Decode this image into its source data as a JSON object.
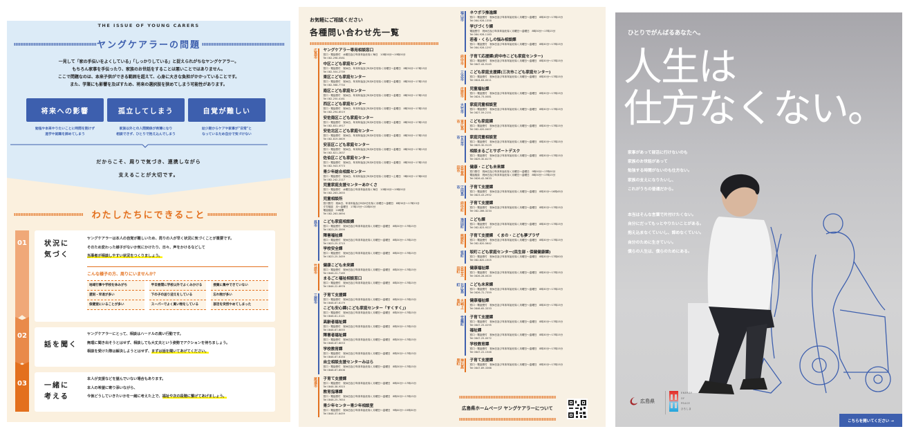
{
  "left": {
    "arc_label": "THE ISSUE OF YOUNG CARERS",
    "title": "ヤングケアラーの問題",
    "intro": [
      "一見して「家の手伝いをよくしている」「しっかりしている」と捉えられがちなヤングケアラー。",
      "もちろん家事を手伝ったり、家族のお世話をすることは悪いことではありません。",
      "ここで問題なのは、本来子供ができる範囲を超えて、心身に大きな負担がかかっていることです。",
      "また、学業にも影響を及ぼすため、将来の選択肢を狭めてしまう可能性があります。"
    ],
    "issues": [
      {
        "label": "将来への影響",
        "caption": [
          "勉強や本来やりたいことに時間を割けず",
          "進学や就職を諦めてしまう"
        ]
      },
      {
        "label": "孤立してしまう",
        "caption": [
          "家族以外との人間関係が希薄になり",
          "相談できず、ひとりで抱え込んでしまう"
        ]
      },
      {
        "label": "自覚が難しい",
        "caption": [
          "幼少期からケアや家事が\"日常\"と",
          "なっているため自分で気づけない"
        ]
      }
    ],
    "message": [
      "だからこそ、周りで気づき、連携しながら",
      "支えることが大切です。"
    ],
    "section2_title": "わたしたちにできること",
    "steps": [
      {
        "num": "01",
        "title": [
          "状況に",
          "気づく"
        ],
        "lines": [
          "ヤングケアラーは本人の自覚が難しいため、周りの人が早く状況に気づくことが重要です。",
          "そのため変わった様子がないか気にかけたり、日々、声をかけるなどして"
        ],
        "highlight": "当事者が相談しやすい状況をつくりましょう。",
        "signs_title": "こんな様子の方、周りにいませんか？",
        "signs": [
          "地域行事や学校を休みがち",
          "平日昼間に学校以外でよくみかける",
          "授業に集中できていない",
          "遅刻・早退が多い",
          "下の子の送り迎えをしている",
          "忘れ物が多い",
          "保健室にいることが多い",
          "スーパーでよく買い物をしている",
          "部活を突然やめてしまった"
        ]
      },
      {
        "num": "02",
        "title": [
          "話を聞く"
        ],
        "lines": [
          "ヤングケアラーにとって、相談はハードルの高い行動です。",
          "無理に聞き出そうとはせず、相談しても大丈夫という姿勢でアクションを待ちましょう。"
        ],
        "lead": "相談を受けた際は解決しようとはせず、",
        "highlight": "まずは話を聞いてあげてください。"
      },
      {
        "num": "03",
        "title": [
          "一緒に",
          "考える"
        ],
        "lines": [
          "本人が支援などを望んでいない場合もあります。",
          "本人の希望に寄り添いながら、"
        ],
        "lead": "今後どうしていきたいかを一緒に考えた上で、",
        "highlight": "福祉や次の段階に繋げてあげましょう。"
      }
    ],
    "colors": {
      "blue": "#3d5fae",
      "orange": "#e3701e",
      "blue_bg": "#dcebf7",
      "cream_bg": "#fbf0de",
      "highlight": "#fff200"
    }
  },
  "middle": {
    "kicker": "お気軽にご相談ください",
    "title": "各種問い合わせ先一覧",
    "columns": [
      [
        {
          "region": "広島市",
          "color": "orange",
          "entries": [
            {
              "name": "ヤングケアラー専用相談窓口",
              "lines": [
                "窓口・電話受付　水曜日及び年末年始を除く毎日　10時00分〜19時00分",
                "Tel 082-298-0581"
              ]
            },
            {
              "name": "中区こども家庭センター",
              "lines": [
                "窓口・電話受付　祝休日、年末年始及び8月6日を除く月曜日〜金曜日　8時30分〜17時15分",
                "Tel 082-504-2739"
              ]
            },
            {
              "name": "東区こども家庭センター",
              "lines": [
                "窓口・電話受付　祝休日、年末年始及び8月6日を除く月曜日〜金曜日　8時30分〜17時15分",
                "Tel 082-568-7734"
              ]
            },
            {
              "name": "南区こども家庭センター",
              "lines": [
                "窓口・電話受付　祝休日、年末年始及び8月6日を除く月曜日〜金曜日　8時30分〜17時15分",
                "Tel 082-250-4161"
              ]
            },
            {
              "name": "西区こども家庭センター",
              "lines": [
                "窓口・電話受付　祝休日、年末年始及び8月6日を除く月曜日〜金曜日　8時30分〜17時15分",
                "Tel 082-294-6519"
              ]
            },
            {
              "name": "安佐南区こども家庭センター",
              "lines": [
                "窓口・電話受付　祝休日、年末年始及び8月6日を除く月曜日〜金曜日　8時30分〜17時15分",
                "Tel 082-831-4917"
              ]
            },
            {
              "name": "安佐北区こども家庭センター",
              "lines": [
                "窓口・電話受付　祝休日、年末年始及び8月6日を除く月曜日〜金曜日　8時30分〜17時15分",
                "Tel 082-819-0609"
              ]
            },
            {
              "name": "安芸区こども家庭センター",
              "lines": [
                "窓口・電話受付　祝休日、年末年始及び8月6日を除く月曜日〜金曜日　8時30分〜17時15分",
                "Tel 082-821-2837"
              ]
            },
            {
              "name": "佐伯区こども家庭センター",
              "lines": [
                "窓口・電話受付　祝休日、年末年始及び8月6日を除く月曜日〜金曜日　8時30分〜17時15分",
                "Tel 082-943-9773"
              ]
            },
            {
              "name": "青少年総合相談センター",
              "lines": [
                "窓口・電話受付　祝休日、年末年始及び8月6日を除く月曜日〜土曜日　9時00分〜17時00分",
                "Tel 082-242-2117"
              ]
            },
            {
              "name": "児童家庭支援センターあかくさ",
              "lines": [
                "窓口・電話受付　水曜日及び年末年始を除く毎日　10時00分〜19時00分",
                "Tel 082-263-2655"
              ]
            },
            {
              "name": "児童相談所",
              "lines": [
                "窓口受付　祝休日、年末年始及び8月6日を除く月曜日〜金曜日　8時30分〜17時15分",
                "夕方相談　月〜金曜日　17時15分〜22時00分",
                "電話相談　24時間",
                "Tel 082-263-0694"
              ]
            }
          ]
        },
        {
          "region": "呉市",
          "color": "blue",
          "entries": [
            {
              "name": "こども家庭相談課",
              "lines": [
                "窓口・電話受付　祝休日及び年末年始を除く月曜日〜金曜日　8時30分〜17時15分",
                "Tel 0823-25-3599"
              ]
            },
            {
              "name": "障害福祉課",
              "lines": [
                "窓口・電話受付　祝休日及び年末年始を除く月曜日〜金曜日　8時30分〜17時15分",
                "Tel 0823-25-3715"
              ]
            },
            {
              "name": "学校安全課",
              "lines": [
                "窓口・電話受付　祝休日及び年末年始を除く月曜日〜金曜日　8時30分〜17時15分",
                "Tel 0823-25-3459"
              ]
            }
          ]
        },
        {
          "region": "竹原市",
          "color": "orange",
          "entries": [
            {
              "name": "健康こども未来課",
              "lines": [
                "窓口・電話受付　祝休日及び年末年始を除く月曜日〜金曜日　8時30分〜17時15分",
                "Tel 0846-22-7169"
              ]
            },
            {
              "name": "まるごと福祉相談窓口",
              "lines": [
                "窓口・電話受付　祝休日及び年末年始を除く月曜日〜金曜日　8時30分〜17時15分",
                "Tel 0846-22-6976"
              ]
            }
          ]
        },
        {
          "region": "三原市",
          "color": "blue",
          "entries": [
            {
              "name": "子育て支援課",
              "lines": [
                "窓口・電話受付　祝休日及び年末年始を除く月曜日〜金曜日　8時30分〜17時15分",
                "Tel 0848-67-6179"
              ]
            },
            {
              "name": "こども安心課(こども家庭センター「すくすく」)",
              "lines": [
                "窓口・電話受付　祝休日及び年末年始を除く月曜日〜金曜日　8時30分〜17時15分",
                "Tel 0848-61-0121"
              ]
            },
            {
              "name": "高齢者福祉課",
              "lines": [
                "窓口・電話受付　祝休日及び年末年始を除く月曜日〜金曜日　8時30分〜17時15分",
                "Tel 0848-67-6055"
              ]
            },
            {
              "name": "障害者福祉課",
              "lines": [
                "窓口・電話受付　祝休日及び年末年始を除く月曜日〜金曜日　8時30分〜17時15分",
                "Tel 0848-67-6053"
              ]
            },
            {
              "name": "学校教育課",
              "lines": [
                "窓口・電話受付　祝休日及び年末年始を除く月曜日〜金曜日　8時30分〜17時15分",
                "Tel 0848-67-6154"
              ]
            },
            {
              "name": "自立相談支援センターみはら",
              "lines": [
                "窓口・電話受付　祝休日及び年末年始を除く月曜日〜金曜日　8時30分〜17時15分",
                "Tel 0848-67-6506"
              ]
            }
          ]
        },
        {
          "region": "尾道市",
          "color": "orange",
          "entries": [
            {
              "name": "子育て支援課",
              "lines": [
                "窓口・電話受付　祝休日及び年末年始を除く月曜日〜金曜日　8時30分〜17時15分",
                "Tel 0848-38-9315"
              ]
            },
            {
              "name": "教育指導課",
              "lines": [
                "窓口・電話受付　祝休日及び年末年始を除く月曜日〜金曜日　8時30分〜17時15分",
                "Tel 0848-25-7654"
              ]
            },
            {
              "name": "青少年センター青少年相談室",
              "lines": [
                "窓口・電話受付　祝休日及び年末年始を除く月曜日〜金曜日　9時00分〜15時30分",
                "Tel 0848-37-6459"
              ]
            }
          ]
        }
      ],
      [
        {
          "region": "福山市",
          "color": "blue",
          "entries": [
            {
              "name": "ネウボラ推進課",
              "lines": [
                "窓口・電話受付　祝休日及び年末年始を除く月曜日〜金曜日　8時30分〜17時15分",
                "Tel 084-928-1358"
              ]
            },
            {
              "name": "学びづくり課",
              "lines": [
                "電話受付　祝休日及び年末年始を除く月曜日〜金曜日　8時30分〜17時15分",
                "Tel 084-928-1183"
              ]
            },
            {
              "name": "若者・くらしの悩み相談課",
              "lines": [
                "窓口・電話受付　祝休日及び年末年始を除く月曜日〜金曜日　8時30分〜17時15分",
                "Tel 084-928-1297"
              ]
            }
          ]
        },
        {
          "region": "府中市",
          "color": "orange",
          "entries": [
            {
              "name": "子育て応援課(府中市こども家庭センター)",
              "lines": [
                "窓口・電話受付　祝休日及び年末年始を除く月曜日〜金曜日　8時30分〜17時15分",
                "Tel 0847-44-9145"
              ]
            }
          ]
        },
        {
          "region": "三次市",
          "color": "blue",
          "entries": [
            {
              "name": "こども家庭支援課(三次市こども家庭センター)",
              "lines": [
                "窓口・電話受付　祝休日及び年末年始を除く月曜日〜金曜日　8時30分〜17時15分",
                "Tel 0824-64-0011"
              ]
            }
          ]
        },
        {
          "region": "庄原市",
          "color": "orange",
          "entries": [
            {
              "name": "児童福祉課",
              "lines": [
                "窓口・電話受付　祝休日及び年末年始を除く月曜日〜金曜日　8時30分〜17時15分",
                "Tel 0824-73-0081"
              ]
            }
          ]
        },
        {
          "region": "大竹市",
          "color": "blue",
          "entries": [
            {
              "name": "家庭児童相談室",
              "lines": [
                "窓口・電話受付　祝休日及び年末年始を除く月曜日〜金曜日　8時30分〜17時15分",
                "Tel 0827-59-2151"
              ]
            }
          ]
        },
        {
          "region": "東広島市",
          "color": "orange",
          "entries": [
            {
              "name": "こども家庭課",
              "lines": [
                "窓口・電話受付　祝休日及び年末年始を除く月曜日〜金曜日　8時30分〜17時15分",
                "Tel 082-420-0407"
              ]
            }
          ]
        },
        {
          "region": "廿日市市",
          "color": "blue",
          "entries": [
            {
              "name": "家庭児童相談室",
              "lines": [
                "窓口・電話受付　祝休日及び年末年始を除く月曜日〜金曜日　8時30分〜17時15分",
                "Tel 0829-30-9129"
              ]
            },
            {
              "name": "相談まるごとサポートデスク",
              "lines": [
                "窓口・電話受付　祝休日及び年末年始を除く月曜日〜金曜日　8時30分〜17時15分",
                "Tel 0829-30-6175"
              ]
            }
          ]
        },
        {
          "region": "安芸高田市",
          "color": "orange",
          "entries": [
            {
              "name": "健康・こども未来課",
              "lines": [
                "窓口受付　祝休日及び年末年始を除く月曜日〜金曜日　9時00分〜17時00分",
                "電話相談　祝休日及び年末年始を除く月曜日〜金曜日　8時30分〜17時15分",
                "Tel 0826-42-5633"
              ]
            }
          ]
        },
        {
          "region": "江田島市",
          "color": "blue",
          "entries": [
            {
              "name": "子育て支援課",
              "lines": [
                "窓口・電話受付　祝休日及び年末年始を除く月曜日〜金曜日　8時30分〜16時45分",
                "Tel 0823-43-2952"
              ]
            }
          ]
        },
        {
          "region": "府中町",
          "color": "orange",
          "entries": [
            {
              "name": "子育て支援課",
              "lines": [
                "窓口・電話受付　祝休日及び年末年始を除く月曜日〜金曜日　8時30分〜17時15分",
                "Tel 082-286-3234"
              ]
            }
          ]
        },
        {
          "region": "海田町",
          "color": "blue",
          "entries": [
            {
              "name": "こども課",
              "lines": [
                "窓口・電話受付　祝休日及び年末年始を除く月曜日〜金曜日　8時30分〜17時15分",
                "Tel 082-823-9227"
              ]
            }
          ]
        },
        {
          "region": "熊野町",
          "color": "orange",
          "entries": [
            {
              "name": "子育て支援課　くまの・こども夢プラザ",
              "lines": [
                "窓口・電話受付　祝休日及び年末年始を除く月曜日〜金曜日　8時30分〜17時15分",
                "Tel 082-820-5642"
              ]
            }
          ]
        },
        {
          "region": "坂町",
          "color": "blue",
          "entries": [
            {
              "name": "坂町こども家庭センター(民生部・保健健康課)",
              "lines": [
                "窓口・電話受付　祝休日及び年末年始を除く月曜日〜金曜日　8時30分〜17時00分",
                "Tel 082-820-1505"
              ]
            }
          ]
        },
        {
          "region": "安芸太田町",
          "color": "orange",
          "entries": [
            {
              "name": "健康福祉課",
              "lines": [
                "窓口・電話受付　祝休日及び年末年始を除く月曜日〜金曜日　8時30分〜17時15分",
                "Tel 0826-28-0020"
              ]
            }
          ]
        },
        {
          "region": "北広島町",
          "color": "blue",
          "entries": [
            {
              "name": "こども未来課",
              "lines": [
                "窓口・電話受付　祝休日及び年末年始を除く月曜日〜金曜日　8時30分〜17時15分",
                "Tel 0826-72-7359"
              ]
            }
          ]
        },
        {
          "region": "大崎上島町",
          "color": "orange",
          "entries": [
            {
              "name": "健康福祉課",
              "lines": [
                "窓口・電話受付　祝休日及び年末年始を除く月曜日〜金曜日　8時30分〜17時15分",
                "Tel 0846-65-3333"
              ]
            }
          ]
        },
        {
          "region": "世羅町",
          "color": "blue",
          "entries": [
            {
              "name": "子育て支援課",
              "lines": [
                "窓口・電話受付　祝休日及び年末年始を除く月曜日〜金曜日　8時30分〜17時15分",
                "Tel 0847-25-0295"
              ]
            },
            {
              "name": "福祉課",
              "lines": [
                "窓口・電話受付　祝休日及び年末年始を除く月曜日〜金曜日　8時30分〜17時15分",
                "Tel 0847-25-0072"
              ]
            },
            {
              "name": "学校教育課",
              "lines": [
                "窓口・電話受付　祝休日及び年末年始を除く月曜日〜金曜日　8時30分〜17時15分",
                "Tel 0847-22-1546"
              ]
            }
          ]
        },
        {
          "region": "神石高原町",
          "color": "orange",
          "entries": [
            {
              "name": "子育て支援課",
              "lines": [
                "窓口・電話受付　祝休日及び年末年始を除く月曜日〜金曜日　8時30分〜17時15分",
                "Tel 0847-89-3366"
              ]
            }
          ]
        }
      ]
    ],
    "footer_link": "広島県ホームページ ヤングケアラーについて",
    "qr_icon": "qr-code",
    "colors": {
      "orange": "#e3701e",
      "blue": "#3d5fae",
      "bg": "#f8f1e4"
    }
  },
  "right": {
    "kicker": "ひとりでがんばるあなたへ。",
    "headline": [
      "人生は",
      "仕方なくない。"
    ],
    "copy1": [
      "家事があって部活に行けないのも",
      "家族のお世話があって",
      "勉強する時間がないのも仕方ない。",
      "家族の支えになりたいし、",
      "これがうちの普通だから。"
    ],
    "copy2": [
      "本当はそんな言葉で片付けたくない。",
      "自分にだってもっとやりたいことがある。",
      "抱え込まなくていいし、諦めなくていい。",
      "自分のために生きていい。",
      "僕らの人生は、僕らのためにある。"
    ],
    "logo_pref": "広島県",
    "logo_peace": [
      "ENERGY",
      "OF",
      "PEACE",
      "ひろしま"
    ],
    "open_button": "こちらを開いてください →",
    "colors": {
      "button": "#3d5fae",
      "line_art": "#3d5fae"
    }
  }
}
